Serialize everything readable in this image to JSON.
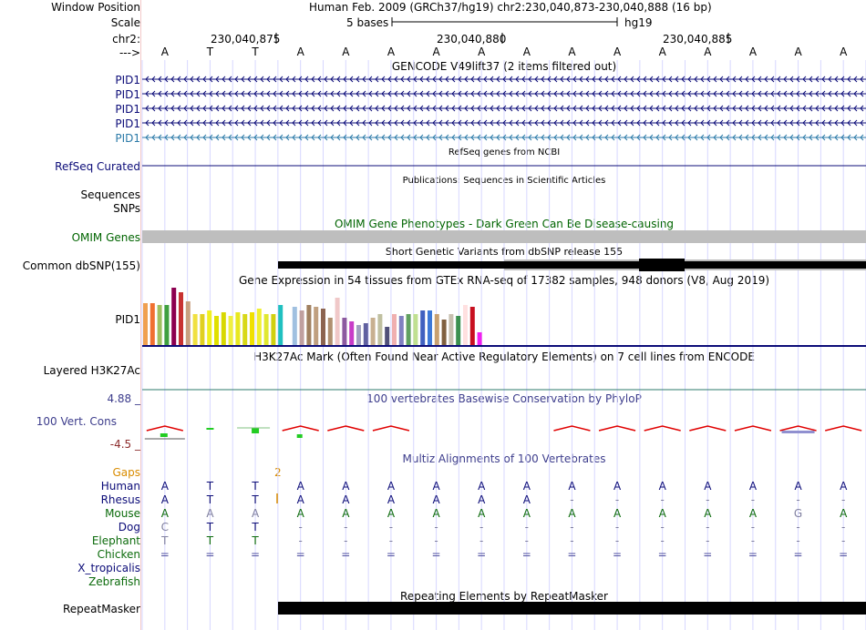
{
  "header": {
    "window_position_label": "Window Position",
    "window_position_value": "Human Feb. 2009 (GRCh37/hg19)   chr2:230,040,873-230,040,888 (16 bp)",
    "scale_label": "Scale",
    "scale_value": "5 bases",
    "scale_assembly": "hg19",
    "chr_label": "chr2:",
    "arrow_label": "--->",
    "coords": [
      "230,040,875",
      "230,040,880",
      "230,040,885"
    ]
  },
  "sequence": [
    "A",
    "T",
    "T",
    "A",
    "A",
    "A",
    "A",
    "A",
    "A",
    "A",
    "A",
    "A",
    "A",
    "A",
    "A",
    "A"
  ],
  "gencode": {
    "title": "GENCODE V49lift37 (2 items filtered out)",
    "genes": [
      "PID1",
      "PID1",
      "PID1",
      "PID1",
      "PID1"
    ],
    "colors": [
      "#0c0c78",
      "#0c0c78",
      "#0c0c78",
      "#0c0c78",
      "#2b7aa8"
    ]
  },
  "refseq": {
    "title": "RefSeq genes from NCBI",
    "label": "RefSeq Curated"
  },
  "publications": {
    "title": "Publications: Sequences in Scientific Articles",
    "labels": [
      "Sequences",
      "SNPs"
    ]
  },
  "omim": {
    "title": "OMIM Gene Phenotypes - Dark Green Can Be Disease-causing",
    "label": "OMIM Genes"
  },
  "dbsnp": {
    "title": "Short Genetic Variants from dbSNP release 155",
    "label": "Common dbSNP(155)"
  },
  "gtex": {
    "title": "Gene Expression in 54 tissues from GTEx RNA-seq of 17382 samples, 948 donors (V8, Aug 2019)",
    "label": "PID1"
  },
  "h3k27ac": {
    "title": "H3K27Ac Mark (Often Found Near Active Regulatory Elements) on 7 cell lines from ENCODE",
    "label": "Layered H3K27Ac"
  },
  "phylop": {
    "title": "100 vertebrates Basewise Conservation by PhyloP",
    "label": "100 Vert. Cons",
    "max": "4.88 _",
    "min": "-4.5 _"
  },
  "multiz": {
    "title": "Multiz Alignments of 100 Vertebrates",
    "gaps_label": "Gaps",
    "gaps_value": "2",
    "species": [
      {
        "name": "Human",
        "color": "#0c0c78",
        "bases": [
          "A",
          "T",
          "T",
          "A",
          "A",
          "A",
          "A",
          "A",
          "A",
          "A",
          "A",
          "A",
          "A",
          "A",
          "A",
          "A"
        ]
      },
      {
        "name": "Rhesus",
        "color": "#0c0c78",
        "bases": [
          "A",
          "T",
          "T",
          "A",
          "A",
          "A",
          "A",
          "A",
          "A",
          "-",
          "-",
          "-",
          "-",
          "-",
          "-",
          "-"
        ]
      },
      {
        "name": "Mouse",
        "color": "#0c6b0c",
        "bases": [
          "A",
          "A",
          "A",
          "A",
          "A",
          "A",
          "A",
          "A",
          "A",
          "A",
          "A",
          "A",
          "A",
          "A",
          "G",
          "A"
        ]
      },
      {
        "name": "Dog",
        "color": "#0c0c78",
        "bases": [
          "C",
          "T",
          "T",
          "-",
          "-",
          "-",
          "-",
          "-",
          "-",
          "-",
          "-",
          "-",
          "-",
          "-",
          "-",
          "-"
        ]
      },
      {
        "name": "Elephant",
        "color": "#0c6b0c",
        "bases": [
          "T",
          "T",
          "T",
          "-",
          "-",
          "-",
          "-",
          "-",
          "-",
          "-",
          "-",
          "-",
          "-",
          "-",
          "-",
          "-"
        ]
      },
      {
        "name": "Chicken",
        "color": "#0c6b0c",
        "bases": [
          "=",
          "=",
          "=",
          "=",
          "=",
          "=",
          "=",
          "=",
          "=",
          "=",
          "=",
          "=",
          "=",
          "=",
          "=",
          "="
        ]
      },
      {
        "name": "X_tropicalis",
        "color": "#0c0c78",
        "bases": []
      },
      {
        "name": "Zebrafish",
        "color": "#0c6b0c",
        "bases": []
      }
    ]
  },
  "repeatmasker": {
    "title": "Repeating Elements by RepeatMasker",
    "label": "RepeatMasker"
  },
  "colors": {
    "gene_dark": "#0c0c78",
    "gene_light": "#2b7aa8",
    "omim_green": "#006400",
    "gaps_orange": "#d98c00",
    "phylop_label": "#3d3d8c",
    "grid": "#d7d7ff"
  }
}
